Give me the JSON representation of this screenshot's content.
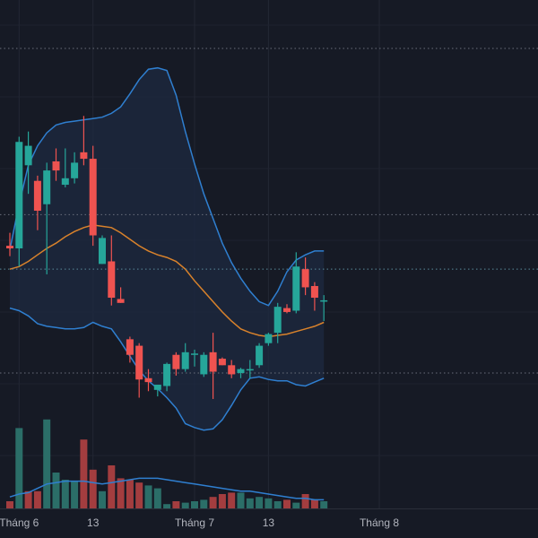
{
  "chart_data": {
    "type": "candlestick",
    "overlays": [
      "bollinger-bands",
      "moving-average",
      "volume"
    ],
    "x_ticks": [
      {
        "label": "Tháng 6",
        "index": 1
      },
      {
        "label": "13",
        "index": 9
      },
      {
        "label": "Tháng 7",
        "index": 20
      },
      {
        "label": "13",
        "index": 28
      },
      {
        "label": "Tháng 8",
        "index": 40
      }
    ],
    "price_levels": [
      64.0,
      51.2,
      47.0,
      39.0
    ],
    "candles": [
      {
        "o": 48.8,
        "h": 49.8,
        "l": 48.0,
        "c": 48.6
      },
      {
        "o": 48.6,
        "h": 57.2,
        "l": 47.2,
        "c": 56.8
      },
      {
        "o": 55.0,
        "h": 57.6,
        "l": 52.8,
        "c": 56.5
      },
      {
        "o": 53.8,
        "h": 54.2,
        "l": 50.0,
        "c": 51.5
      },
      {
        "o": 52.0,
        "h": 55.2,
        "l": 46.6,
        "c": 54.6
      },
      {
        "o": 55.3,
        "h": 56.3,
        "l": 53.8,
        "c": 54.6
      },
      {
        "o": 53.5,
        "h": 56.3,
        "l": 53.3,
        "c": 54.0
      },
      {
        "o": 54.0,
        "h": 56.0,
        "l": 53.6,
        "c": 55.2
      },
      {
        "o": 56.0,
        "h": 58.8,
        "l": 55.0,
        "c": 55.5
      },
      {
        "o": 55.5,
        "h": 56.5,
        "l": 48.8,
        "c": 49.6
      },
      {
        "o": 47.4,
        "h": 49.6,
        "l": 47.4,
        "c": 49.4
      },
      {
        "o": 47.6,
        "h": 49.6,
        "l": 44.2,
        "c": 44.8
      },
      {
        "o": 44.7,
        "h": 45.6,
        "l": 44.4,
        "c": 44.4
      },
      {
        "o": 41.6,
        "h": 41.8,
        "l": 39.8,
        "c": 40.4
      },
      {
        "o": 41.1,
        "h": 41.3,
        "l": 37.1,
        "c": 38.5
      },
      {
        "o": 38.6,
        "h": 39.3,
        "l": 37.6,
        "c": 38.3
      },
      {
        "o": 37.7,
        "h": 38.0,
        "l": 37.2,
        "c": 38.1
      },
      {
        "o": 38.0,
        "h": 39.8,
        "l": 37.6,
        "c": 39.7
      },
      {
        "o": 40.4,
        "h": 40.6,
        "l": 38.8,
        "c": 39.3
      },
      {
        "o": 39.3,
        "h": 41.3,
        "l": 39.1,
        "c": 40.6
      },
      {
        "o": 40.4,
        "h": 40.8,
        "l": 39.5,
        "c": 40.5
      },
      {
        "o": 38.9,
        "h": 40.6,
        "l": 38.7,
        "c": 40.4
      },
      {
        "o": 40.6,
        "h": 42.1,
        "l": 37.0,
        "c": 39.1
      },
      {
        "o": 40.1,
        "h": 40.2,
        "l": 39.6,
        "c": 39.6
      },
      {
        "o": 39.6,
        "h": 40.0,
        "l": 38.6,
        "c": 38.9
      },
      {
        "o": 39.0,
        "h": 39.4,
        "l": 38.6,
        "c": 39.3
      },
      {
        "o": 39.3,
        "h": 40.0,
        "l": 38.6,
        "c": 39.3
      },
      {
        "o": 39.6,
        "h": 41.3,
        "l": 39.4,
        "c": 41.1
      },
      {
        "o": 41.3,
        "h": 42.1,
        "l": 41.1,
        "c": 42.0
      },
      {
        "o": 42.1,
        "h": 44.4,
        "l": 41.3,
        "c": 44.1
      },
      {
        "o": 44.0,
        "h": 44.3,
        "l": 43.6,
        "c": 43.7
      },
      {
        "o": 43.8,
        "h": 48.3,
        "l": 43.6,
        "c": 47.2
      },
      {
        "o": 47.0,
        "h": 47.9,
        "l": 45.0,
        "c": 45.6
      },
      {
        "o": 45.7,
        "h": 46.0,
        "l": 43.8,
        "c": 44.8
      },
      {
        "o": 44.6,
        "h": 45.0,
        "l": 43.0,
        "c": 44.6
      }
    ],
    "volume": [
      0.05,
      0.56,
      0.12,
      0.12,
      0.62,
      0.25,
      0.2,
      0.19,
      0.48,
      0.27,
      0.12,
      0.3,
      0.21,
      0.2,
      0.18,
      0.16,
      0.14,
      0.03,
      0.05,
      0.04,
      0.05,
      0.06,
      0.08,
      0.1,
      0.11,
      0.11,
      0.07,
      0.08,
      0.07,
      0.05,
      0.06,
      0.04,
      0.1,
      0.06,
      0.05
    ],
    "volume_up": [
      false,
      true,
      false,
      false,
      true,
      true,
      true,
      true,
      false,
      false,
      true,
      false,
      false,
      false,
      false,
      true,
      true,
      true,
      false,
      true,
      true,
      true,
      false,
      false,
      false,
      true,
      true,
      true,
      true,
      true,
      false,
      true,
      false,
      false,
      true
    ],
    "volume_ma": [
      0.08,
      0.1,
      0.11,
      0.14,
      0.17,
      0.18,
      0.19,
      0.19,
      0.19,
      0.18,
      0.17,
      0.18,
      0.19,
      0.2,
      0.21,
      0.21,
      0.21,
      0.2,
      0.19,
      0.18,
      0.17,
      0.16,
      0.15,
      0.14,
      0.13,
      0.12,
      0.12,
      0.11,
      0.1,
      0.09,
      0.08,
      0.07,
      0.07,
      0.06,
      0.06
    ],
    "bb_upper": [
      48.5,
      52.0,
      55.0,
      56.5,
      57.5,
      58.1,
      58.3,
      58.4,
      58.5,
      58.6,
      58.7,
      59.0,
      59.5,
      60.5,
      61.6,
      62.4,
      62.5,
      62.3,
      60.4,
      57.6,
      55.1,
      52.8,
      50.9,
      49.0,
      47.5,
      46.3,
      45.3,
      44.5,
      44.2,
      45.3,
      46.8,
      47.7,
      48.1,
      48.4,
      48.4
    ],
    "bb_lower": [
      44.0,
      43.8,
      43.4,
      42.8,
      42.6,
      42.5,
      42.4,
      42.4,
      42.5,
      42.9,
      42.6,
      42.4,
      41.4,
      40.3,
      39.2,
      38.4,
      37.8,
      37.1,
      36.3,
      35.1,
      34.8,
      34.6,
      34.7,
      35.4,
      36.5,
      37.7,
      38.6,
      38.7,
      38.5,
      38.4,
      38.4,
      38.1,
      38.0,
      38.3,
      38.6
    ],
    "ma": [
      47.0,
      47.2,
      47.6,
      48.1,
      48.6,
      49.0,
      49.5,
      49.9,
      50.2,
      50.4,
      50.3,
      50.2,
      49.8,
      49.3,
      48.8,
      48.4,
      48.1,
      47.9,
      47.6,
      47.0,
      46.1,
      45.3,
      44.5,
      43.7,
      43.0,
      42.4,
      42.1,
      41.9,
      41.8,
      41.9,
      42.0,
      42.2,
      42.4,
      42.6,
      42.9
    ]
  }
}
